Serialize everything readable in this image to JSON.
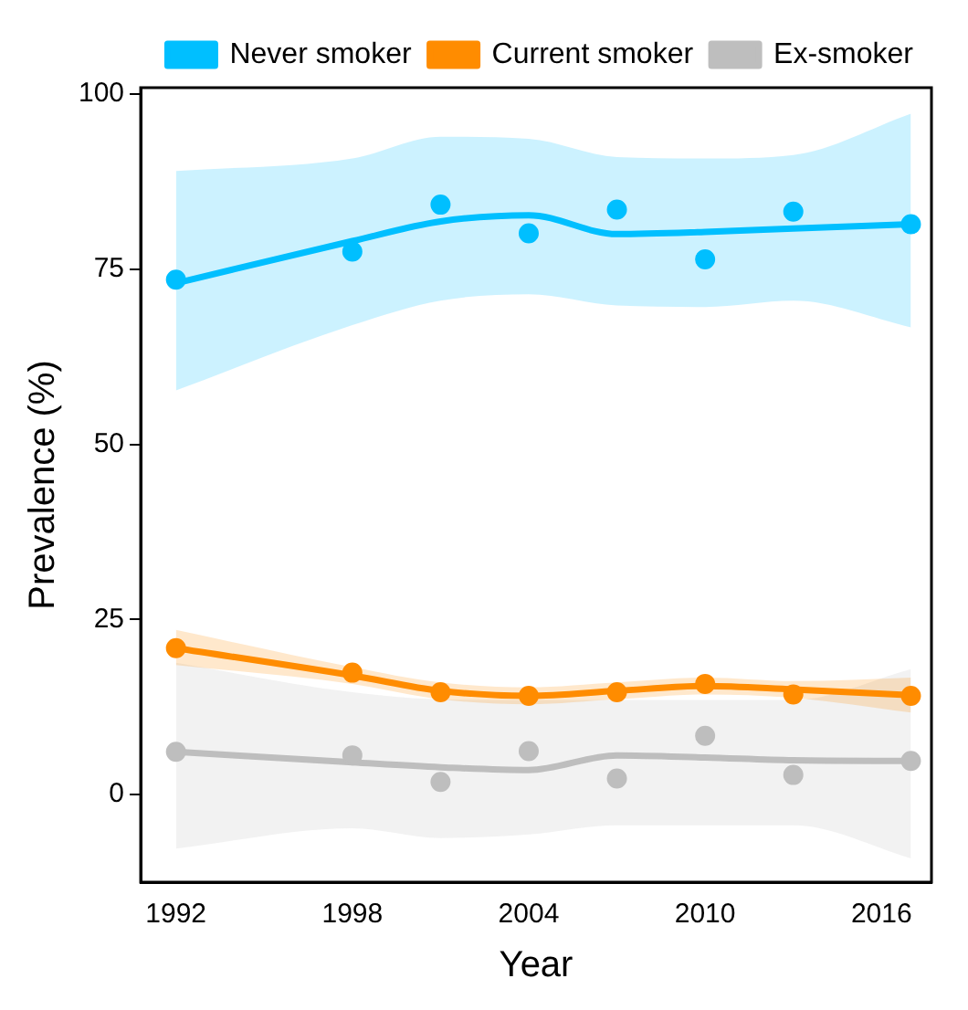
{
  "chart_data": {
    "type": "scatter",
    "xlabel": "Year",
    "ylabel": "Prevalence (%)",
    "xlim": [
      1990.8,
      2017.7
    ],
    "ylim": [
      -12.5,
      100.9
    ],
    "xticks": [
      1992,
      1998,
      2004,
      2010,
      2016
    ],
    "yticks": [
      0,
      25,
      50,
      75,
      100
    ],
    "grid": false,
    "legend": "top",
    "marker": "circle",
    "series": [
      {
        "type": "line",
        "name": "Never smoker",
        "color": "#00bfff",
        "marker": "none",
        "x": [
          1992,
          1998,
          2001,
          2004,
          2007,
          2010,
          2013,
          2017
        ],
        "values": [
          73,
          79,
          81.8,
          82.7,
          80,
          80.3,
          80.8,
          81.4
        ],
        "lower": [
          57.7,
          67,
          70.5,
          71.4,
          69.8,
          69.6,
          70.5,
          66.7
        ],
        "upper": [
          89,
          90.8,
          93.9,
          93.6,
          91,
          90.8,
          91.3,
          97.2
        ]
      },
      {
        "type": "line",
        "name": "Current smoker",
        "color": "#ff8c00",
        "marker": "none",
        "x": [
          1992,
          1998,
          2001,
          2004,
          2007,
          2010,
          2013,
          2017
        ],
        "values": [
          20.9,
          17,
          14.8,
          14.1,
          14.8,
          15.5,
          15,
          14.2
        ],
        "lower": [
          18.5,
          15.8,
          13.6,
          12.9,
          13.6,
          14.3,
          13.8,
          11.7
        ],
        "upper": [
          23.5,
          18.2,
          16,
          15.3,
          16,
          16.7,
          16.2,
          16.7
        ]
      },
      {
        "type": "line",
        "name": "Ex-smoker",
        "color": "#bebebe",
        "marker": "none",
        "x": [
          1992,
          1998,
          2001,
          2004,
          2007,
          2010,
          2013,
          2017
        ],
        "values": [
          6.1,
          4.6,
          3.9,
          3.5,
          5.6,
          5.3,
          4.9,
          4.8
        ],
        "lower": [
          -7.7,
          -4.8,
          -6.2,
          -5.7,
          -4.4,
          -4.4,
          -4.4,
          -9.1
        ],
        "upper": [
          18.8,
          14.6,
          13.6,
          13.5,
          13.5,
          13.5,
          13.5,
          17.9
        ]
      },
      {
        "color": "#00bfff",
        "x": [
          1992,
          1998,
          2001,
          2004,
          2007,
          2010,
          2013,
          2017
        ],
        "values": [
          73.5,
          77.5,
          84.2,
          80.1,
          83.5,
          76.4,
          83.2,
          81.4
        ]
      },
      {
        "color": "#ff8c00",
        "x": [
          1992,
          1998,
          2001,
          2004,
          2007,
          2010,
          2013,
          2017
        ],
        "values": [
          20.9,
          17.4,
          14.6,
          14.1,
          14.6,
          15.8,
          14.3,
          14.1
        ]
      },
      {
        "color": "#bebebe",
        "x": [
          1992,
          1998,
          2001,
          2004,
          2007,
          2010,
          2013,
          2017
        ],
        "values": [
          6.1,
          5.6,
          1.8,
          6.2,
          2.3,
          8.4,
          2.8,
          4.8
        ]
      }
    ]
  }
}
